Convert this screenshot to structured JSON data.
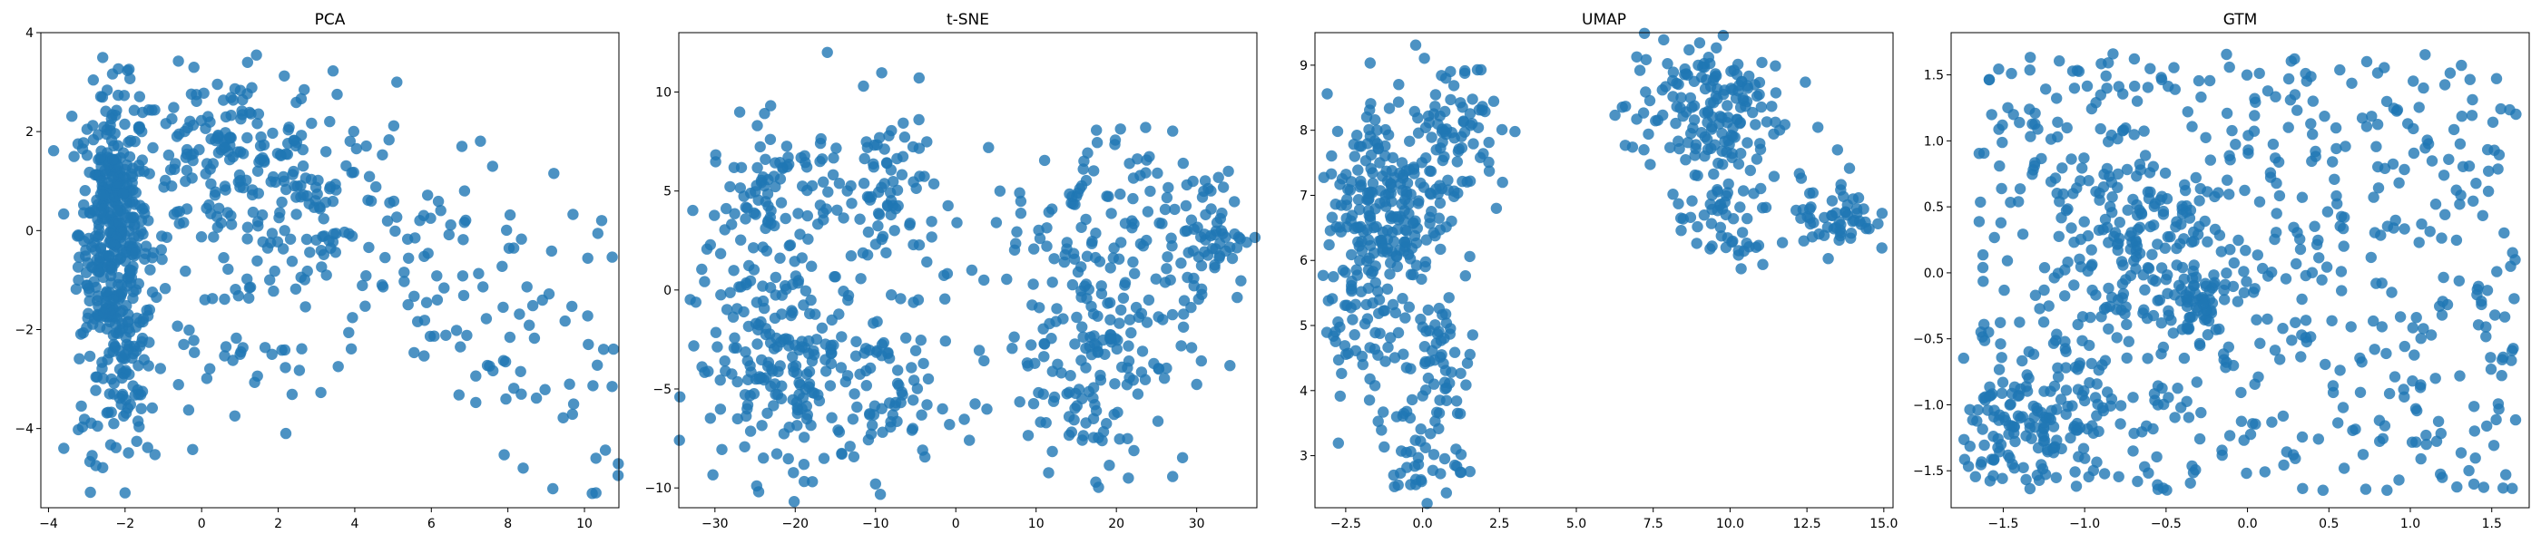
{
  "figure": {
    "background": "#ffffff",
    "marker_color": "#1f77b4",
    "marker_alpha": 0.8
  },
  "chart_data": [
    {
      "type": "scatter",
      "title": "PCA",
      "xlabel": "",
      "ylabel": "",
      "xlim": [
        -4.2,
        10.9
      ],
      "ylim": [
        -5.6,
        4.0
      ],
      "xticks": [
        -4,
        -2,
        0,
        2,
        4,
        6,
        8,
        10
      ],
      "xtick_labels": [
        "−4",
        "−2",
        "0",
        "2",
        "4",
        "6",
        "8",
        "10"
      ],
      "yticks": [
        -4,
        -2,
        0,
        2,
        4
      ],
      "ytick_labels": [
        "−4",
        "−2",
        "0",
        "2",
        "4"
      ],
      "grid": false,
      "clusters": [
        {
          "cx": -2.3,
          "cy": 0.0,
          "sx": 0.45,
          "sy": 1.4,
          "n": 380
        },
        {
          "cx": -2.0,
          "cy": -3.0,
          "sx": 0.4,
          "sy": 0.9,
          "n": 70
        },
        {
          "cx": 0.6,
          "cy": 1.4,
          "sx": 1.4,
          "sy": 0.9,
          "n": 170
        },
        {
          "cx": 2.8,
          "cy": 0.6,
          "sx": 1.3,
          "sy": 1.2,
          "n": 90
        },
        {
          "cx": 6.0,
          "cy": -1.0,
          "sx": 2.0,
          "sy": 1.2,
          "n": 90
        },
        {
          "cx": 9.3,
          "cy": -3.4,
          "sx": 1.1,
          "sy": 1.2,
          "n": 25
        },
        {
          "cx": 0.5,
          "cy": -2.2,
          "sx": 1.6,
          "sy": 1.0,
          "n": 45
        },
        {
          "cx": -2.6,
          "cy": -4.5,
          "sx": 0.8,
          "sy": 0.5,
          "n": 12
        }
      ],
      "points": [
        [
          -2.0,
          -5.3
        ],
        [
          10.3,
          -5.3
        ],
        [
          -3.6,
          -4.4
        ],
        [
          2.2,
          -4.1
        ],
        [
          8.4,
          -4.8
        ],
        [
          10.3,
          -4.6
        ],
        [
          1.2,
          3.4
        ],
        [
          -0.2,
          3.3
        ],
        [
          7.6,
          1.3
        ],
        [
          6.8,
          1.7
        ],
        [
          5.1,
          3.0
        ],
        [
          10.5,
          -2.4
        ],
        [
          10.1,
          -2.3
        ]
      ]
    },
    {
      "type": "scatter",
      "title": "t-SNE",
      "xlabel": "",
      "ylabel": "",
      "xlim": [
        -34.5,
        37.5
      ],
      "ylim": [
        -11.0,
        13.0
      ],
      "xticks": [
        -30,
        -20,
        -10,
        0,
        10,
        20,
        30
      ],
      "xtick_labels": [
        "−30",
        "−20",
        "−10",
        "0",
        "10",
        "20",
        "30"
      ],
      "yticks": [
        -10,
        -5,
        0,
        5,
        10
      ],
      "ytick_labels": [
        "−10",
        "−5",
        "0",
        "5",
        "10"
      ],
      "grid": false,
      "clusters": [
        {
          "cx": -21,
          "cy": -4.0,
          "sx": 6.0,
          "sy": 2.8,
          "n": 210
        },
        {
          "cx": -22,
          "cy": 4.5,
          "sx": 4.5,
          "sy": 2.0,
          "n": 110
        },
        {
          "cx": -8,
          "cy": 5.0,
          "sx": 3.0,
          "sy": 2.2,
          "n": 70
        },
        {
          "cx": -8,
          "cy": -5.0,
          "sx": 4.0,
          "sy": 2.5,
          "n": 60
        },
        {
          "cx": 17,
          "cy": -3.0,
          "sx": 6.0,
          "sy": 3.0,
          "n": 180
        },
        {
          "cx": 17,
          "cy": 4.0,
          "sx": 5.0,
          "sy": 2.0,
          "n": 70
        },
        {
          "cx": 31,
          "cy": 2.8,
          "sx": 3.0,
          "sy": 1.7,
          "n": 70
        }
      ],
      "points": [
        [
          -16.0,
          12.0
        ],
        [
          2.0,
          1.0
        ],
        [
          3.5,
          0.5
        ],
        [
          5.5,
          5.0
        ],
        [
          21.5,
          -9.5
        ],
        [
          -10.0,
          -9.8
        ]
      ]
    },
    {
      "type": "scatter",
      "title": "UMAP",
      "xlabel": "",
      "ylabel": "",
      "xlim": [
        -3.5,
        15.3
      ],
      "ylim": [
        2.2,
        9.5
      ],
      "xticks": [
        -2.5,
        0.0,
        2.5,
        5.0,
        7.5,
        10.0,
        12.5,
        15.0
      ],
      "xtick_labels": [
        "−2.5",
        "0.0",
        "2.5",
        "5.0",
        "7.5",
        "10.0",
        "12.5",
        "15.0"
      ],
      "yticks": [
        3,
        4,
        5,
        6,
        7,
        8,
        9
      ],
      "ytick_labels": [
        "3",
        "4",
        "5",
        "6",
        "7",
        "8",
        "9"
      ],
      "grid": false,
      "clusters": [
        {
          "cx": -1.2,
          "cy": 6.8,
          "sx": 1.0,
          "sy": 0.9,
          "n": 230
        },
        {
          "cx": 0.9,
          "cy": 8.0,
          "sx": 0.8,
          "sy": 0.6,
          "n": 80
        },
        {
          "cx": -2.0,
          "cy": 5.0,
          "sx": 0.7,
          "sy": 0.6,
          "n": 50
        },
        {
          "cx": 0.6,
          "cy": 4.4,
          "sx": 0.5,
          "sy": 0.5,
          "n": 50
        },
        {
          "cx": -0.2,
          "cy": 3.0,
          "sx": 0.7,
          "sy": 0.4,
          "n": 45
        },
        {
          "cx": 9.2,
          "cy": 8.3,
          "sx": 1.3,
          "sy": 0.6,
          "n": 170
        },
        {
          "cx": 9.8,
          "cy": 6.6,
          "sx": 0.8,
          "sy": 0.4,
          "n": 50
        },
        {
          "cx": 13.5,
          "cy": 6.7,
          "sx": 0.6,
          "sy": 0.3,
          "n": 55
        }
      ],
      "points": [
        [
          2.6,
          7.2
        ],
        [
          2.4,
          6.8
        ],
        [
          7.2,
          7.7
        ],
        [
          12.4,
          6.3
        ]
      ]
    },
    {
      "type": "scatter",
      "title": "GTM",
      "xlabel": "",
      "ylabel": "",
      "xlim": [
        -1.82,
        1.73
      ],
      "ylim": [
        -1.78,
        1.82
      ],
      "xticks": [
        -1.5,
        -1.0,
        -0.5,
        0.0,
        0.5,
        1.0,
        1.5
      ],
      "xtick_labels": [
        "−1.5",
        "−1.0",
        "−0.5",
        "0.0",
        "0.5",
        "1.0",
        "1.5"
      ],
      "yticks": [
        -1.5,
        -1.0,
        -0.5,
        0.0,
        0.5,
        1.0,
        1.5
      ],
      "ytick_labels": [
        "−1.5",
        "−1.0",
        "−0.5",
        "0.0",
        "0.5",
        "1.0",
        "1.5"
      ],
      "grid": false,
      "uniform": {
        "xmin": -1.65,
        "xmax": 1.65,
        "ymin": -1.65,
        "ymax": 1.68,
        "n": 620
      },
      "clusters": [
        {
          "cx": -1.3,
          "cy": -1.2,
          "sx": 0.22,
          "sy": 0.25,
          "n": 120
        },
        {
          "cx": -0.65,
          "cy": 0.1,
          "sx": 0.28,
          "sy": 0.38,
          "n": 110
        },
        {
          "cx": -0.3,
          "cy": -0.25,
          "sx": 0.07,
          "sy": 0.12,
          "n": 40
        }
      ],
      "points": []
    }
  ]
}
